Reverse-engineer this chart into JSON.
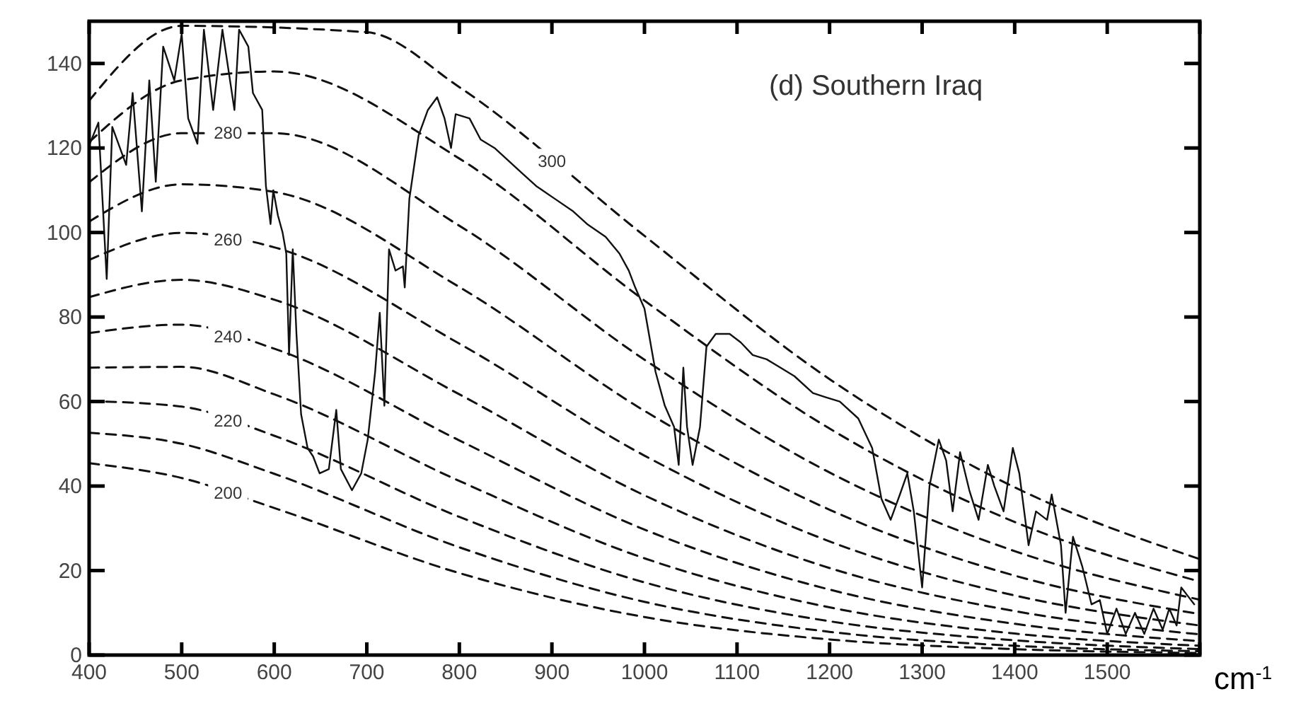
{
  "chart_data": {
    "type": "line",
    "title": "(d) Southern Iraq",
    "xlabel": "cm$^{-1}$",
    "xlim": [
      400,
      1600
    ],
    "ylim": [
      0,
      150
    ],
    "xticks": [
      400,
      500,
      600,
      700,
      800,
      900,
      1000,
      1100,
      1200,
      1300,
      1400,
      1500,
      {
        "value": 1600,
        "label": null
      }
    ],
    "yticks": [
      0,
      20,
      40,
      60,
      80,
      100,
      120,
      140
    ],
    "grid": false,
    "marker": "none",
    "x": [
      400,
      500,
      600,
      800,
      1000,
      1200,
      1400,
      1600
    ],
    "series": [
      {
        "color": "#111111",
        "line_style": "solid",
        "x": [
          400,
          410,
          419,
          425,
          440,
          447,
          457,
          465,
          472,
          480,
          492,
          500,
          507,
          517,
          524,
          534,
          544,
          557,
          562,
          572,
          577,
          587,
          591,
          596,
          599,
          604,
          609,
          613,
          616,
          620,
          624,
          629,
          636,
          642,
          649,
          659,
          667,
          672,
          684,
          694,
          701,
          709,
          714,
          719,
          724,
          731,
          739,
          741,
          746,
          756,
          766,
          776,
          784,
          791,
          796,
          811,
          823,
          838,
          853,
          868,
          883,
          903,
          923,
          938,
          958,
          973,
          983,
          990,
          1000,
          1012,
          1022,
          1032,
          1037,
          1042,
          1046,
          1052,
          1060,
          1067,
          1077,
          1092,
          1104,
          1117,
          1132,
          1147,
          1162,
          1182,
          1196,
          1211,
          1231,
          1246,
          1256,
          1266,
          1276,
          1284,
          1291,
          1300,
          1308,
          1318,
          1326,
          1333,
          1341,
          1351,
          1361,
          1371,
          1378,
          1388,
          1398,
          1405,
          1415,
          1423,
          1435,
          1440,
          1450,
          1455,
          1463,
          1473,
          1483,
          1492,
          1500,
          1510,
          1520,
          1530,
          1540,
          1550,
          1560,
          1567,
          1575,
          1580,
          1587,
          1594
        ],
        "values": [
          120.6,
          126,
          89,
          125,
          116,
          133,
          105,
          136,
          112,
          144,
          136,
          147,
          127,
          121,
          148,
          129,
          148,
          129,
          148,
          144,
          133,
          129,
          111,
          102,
          110,
          104,
          100,
          95,
          71,
          96,
          76,
          57,
          49,
          47,
          43,
          44,
          58,
          44,
          39,
          43,
          51,
          67,
          81,
          59,
          96,
          91,
          92,
          87,
          108,
          123,
          129,
          132,
          127,
          120,
          128,
          127,
          122,
          120,
          117,
          114,
          111,
          108,
          105,
          102,
          99,
          95,
          91,
          87,
          82,
          67,
          59,
          54,
          45,
          68,
          54,
          45,
          54,
          73,
          76,
          76,
          74,
          71,
          70,
          68,
          66,
          62,
          61,
          60,
          56,
          49,
          37,
          32,
          38,
          43,
          34,
          16,
          40,
          51,
          46,
          34,
          48,
          39,
          32,
          45,
          40,
          34,
          49,
          43,
          26,
          34,
          32,
          38,
          26,
          10,
          28,
          21,
          12,
          13,
          5,
          11,
          5,
          10,
          5,
          11,
          6,
          11,
          7,
          16,
          14,
          12
        ]
      },
      {
        "name": "200",
        "color": "#111111",
        "line_style": "dashed",
        "values": [
          45.4,
          41.9,
          34.8,
          19.4,
          9,
          3.7,
          1.4,
          0.5
        ]
      },
      {
        "color": "#111111",
        "line_style": "dashed",
        "values": [
          52.6,
          50.0,
          42.9,
          25.5,
          12.6,
          5.5,
          2.2,
          0.9
        ]
      },
      {
        "name": "220",
        "color": "#111111",
        "line_style": "dashed",
        "values": [
          60.1,
          58.8,
          51.9,
          32.7,
          17.2,
          8,
          3.5,
          1.4
        ]
      },
      {
        "color": "#111111",
        "line_style": "dashed",
        "values": [
          68.0,
          68.2,
          61.7,
          41.2,
          22.9,
          11.3,
          5.1,
          2.2
        ]
      },
      {
        "name": "240",
        "color": "#111111",
        "line_style": "dashed",
        "values": [
          76.2,
          78.2,
          72.5,
          50.8,
          29.7,
          15.5,
          7.4,
          3.3
        ]
      },
      {
        "color": "#111111",
        "line_style": "dashed",
        "values": [
          84.7,
          88.8,
          84.1,
          61.7,
          37.8,
          20.6,
          10.4,
          4.9
        ]
      },
      {
        "name": "260",
        "color": "#111111",
        "line_style": "dashed",
        "values": [
          93.5,
          99.9,
          96.5,
          73.7,
          47.2,
          26.9,
          14.1,
          7
        ]
      },
      {
        "color": "#111111",
        "line_style": "dashed",
        "values": [
          102.6,
          111.4,
          109.6,
          87.1,
          57.8,
          34.4,
          18.8,
          9.7
        ]
      },
      {
        "name": "280",
        "color": "#111111",
        "line_style": "dashed",
        "values": [
          111.9,
          123.5,
          123.5,
          101.6,
          69.9,
          43.2,
          24.6,
          13.1
        ]
      },
      {
        "color": "#111111",
        "line_style": "dashed",
        "values": [
          121.4,
          136.0,
          138.1,
          117.5,
          83.9,
          53.6,
          31.5,
          17.4
        ]
      },
      {
        "name": "300",
        "color": "#111111",
        "line_style": "dashed",
        "x": [
          400,
          500,
          700,
          800,
          1000,
          1200,
          1400,
          1600
        ],
        "values": [
          131.2,
          148.9,
          147.4,
          134.4,
          99.2,
          65.3,
          39.7,
          22.7
        ]
      }
    ]
  }
}
